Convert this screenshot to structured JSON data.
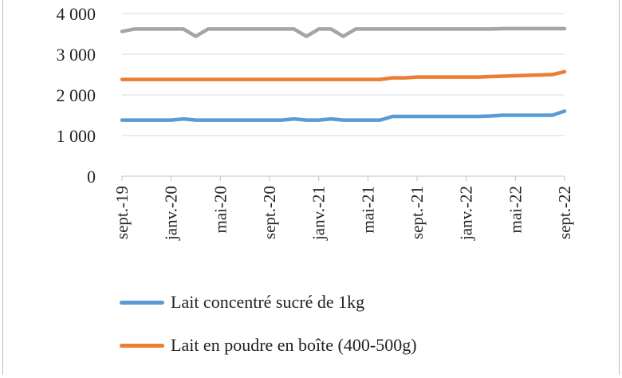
{
  "chart_data": {
    "type": "line",
    "ylim": [
      0,
      4000
    ],
    "yticks": [
      "0",
      "1 000",
      "2 000",
      "3 000",
      "4 000"
    ],
    "ytick_values": [
      0,
      1000,
      2000,
      3000,
      4000
    ],
    "xtick_labels": [
      "sept.-19",
      "janv.-20",
      "mai-20",
      "sept.-20",
      "janv.-21",
      "mai-21",
      "sept.-21",
      "janv.-22",
      "mai-22",
      "sept.-22"
    ],
    "grid": true,
    "legend_position": "bottom",
    "x": [
      "sept.-19",
      "oct.-19",
      "nov.-19",
      "déc.-19",
      "janv.-20",
      "févr.-20",
      "mars-20",
      "avr.-20",
      "mai-20",
      "juin-20",
      "juil.-20",
      "août-20",
      "sept.-20",
      "oct.-20",
      "nov.-20",
      "déc.-20",
      "janv.-21",
      "févr.-21",
      "mars-21",
      "avr.-21",
      "mai-21",
      "juin-21",
      "juil.-21",
      "août-21",
      "sept.-21",
      "oct.-21",
      "nov.-21",
      "déc.-21",
      "janv.-22",
      "févr.-22",
      "mars-22",
      "avr.-22",
      "mai-22",
      "juin-22",
      "juil.-22",
      "août-22",
      "sept.-22"
    ],
    "series": [
      {
        "name": "Lait concentré sucré de 1kg",
        "color": "#5b9bd5",
        "values": [
          1380,
          1380,
          1380,
          1380,
          1380,
          1410,
          1380,
          1380,
          1380,
          1380,
          1380,
          1380,
          1380,
          1380,
          1410,
          1380,
          1380,
          1410,
          1380,
          1380,
          1380,
          1380,
          1470,
          1470,
          1470,
          1470,
          1470,
          1470,
          1470,
          1470,
          1480,
          1500,
          1500,
          1500,
          1500,
          1500,
          1600
        ]
      },
      {
        "name": "Lait en poudre en boîte (400-500g)",
        "color": "#ed7d31",
        "values": [
          2380,
          2380,
          2380,
          2380,
          2380,
          2380,
          2380,
          2380,
          2380,
          2380,
          2380,
          2380,
          2380,
          2380,
          2380,
          2380,
          2380,
          2380,
          2380,
          2380,
          2380,
          2380,
          2420,
          2420,
          2440,
          2440,
          2440,
          2440,
          2440,
          2440,
          2450,
          2460,
          2470,
          2480,
          2490,
          2500,
          2570
        ]
      },
      {
        "name": "",
        "color": "#a5a5a5",
        "values": [
          3560,
          3620,
          3620,
          3620,
          3620,
          3620,
          3440,
          3620,
          3620,
          3620,
          3620,
          3620,
          3620,
          3620,
          3620,
          3440,
          3620,
          3620,
          3440,
          3620,
          3620,
          3620,
          3620,
          3620,
          3620,
          3620,
          3620,
          3620,
          3620,
          3620,
          3620,
          3630,
          3630,
          3630,
          3630,
          3630,
          3630
        ]
      }
    ]
  }
}
